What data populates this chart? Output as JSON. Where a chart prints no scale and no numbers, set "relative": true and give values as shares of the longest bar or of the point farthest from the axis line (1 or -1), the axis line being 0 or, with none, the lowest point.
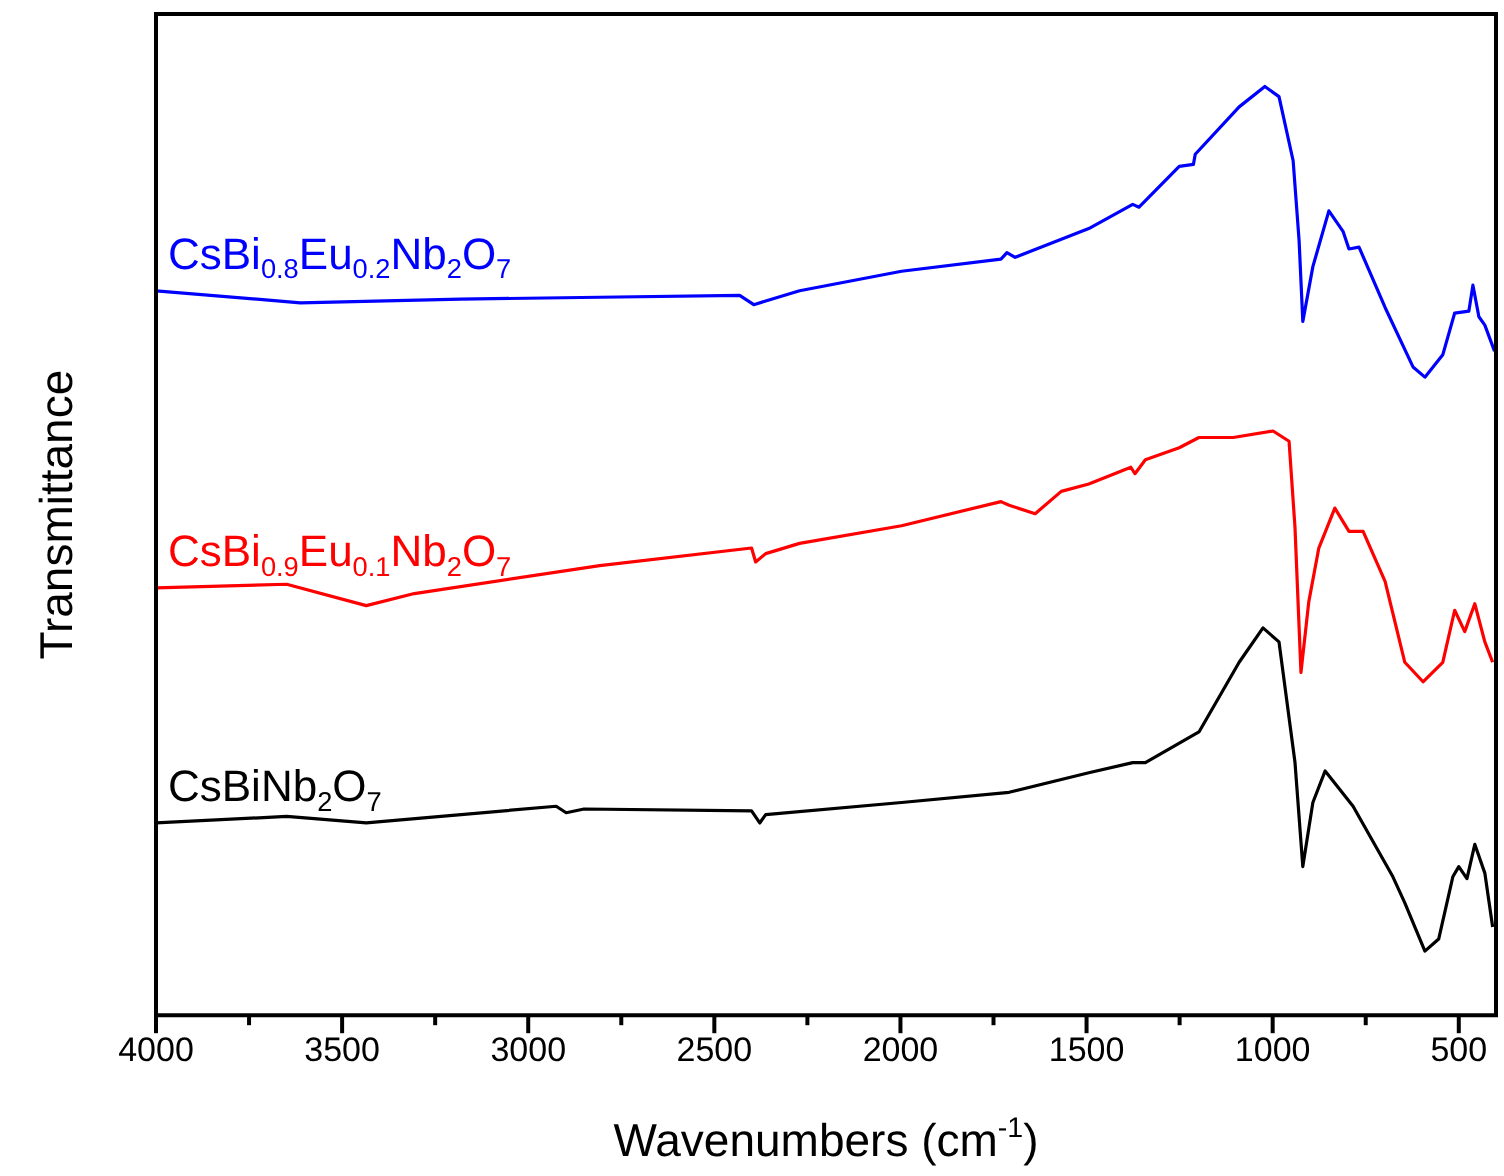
{
  "chart_data": {
    "type": "line",
    "relative": true,
    "xlabel": "Wavenumbers (cm$^{-1}$)",
    "ylabel": "Transmittance",
    "xlim": [
      4000,
      400
    ],
    "xticks": [
      4000,
      {
        "value": 3750,
        "label": null
      },
      3500,
      {
        "value": 3250,
        "label": null
      },
      3000,
      {
        "value": 2750,
        "label": null
      },
      2500,
      {
        "value": 2250,
        "label": null
      },
      2000,
      {
        "value": 1750,
        "label": null
      },
      1500,
      {
        "value": 1250,
        "label": null
      },
      1000,
      {
        "value": 750,
        "label": null
      },
      500
    ],
    "tick_labels": "x",
    "legend": false,
    "grid": false,
    "marker": "none",
    "line_style": "solid",
    "series": [
      {
        "name": "CsBi$_{0.8}$Eu$_{0.2}$Nb$_{2}$O$_{7}$",
        "color": "#0000ff",
        "x": [
          4000,
          3612,
          3182,
          2808,
          2432,
          2394,
          2362,
          2271,
          1997,
          1730,
          1714,
          1692,
          1494,
          1376,
          1359,
          1251,
          1213,
          1208,
          1090,
          1021,
          983,
          945,
          929,
          919,
          892,
          849,
          811,
          795,
          768,
          698,
          623,
          591,
          543,
          511,
          473,
          462,
          446,
          430,
          404
        ],
        "values": [
          0.78,
          0.767,
          0.771,
          0.773,
          0.775,
          0.765,
          0.769,
          0.78,
          0.801,
          0.814,
          0.821,
          0.816,
          0.847,
          0.873,
          0.87,
          0.914,
          0.916,
          0.927,
          0.978,
          1,
          0.989,
          0.92,
          0.834,
          0.747,
          0.806,
          0.866,
          0.844,
          0.825,
          0.827,
          0.762,
          0.698,
          0.687,
          0.711,
          0.756,
          0.758,
          0.786,
          0.752,
          0.743,
          0.715
        ]
      },
      {
        "name": "CsBi$_{0.9}$Eu$_{0.1}$Nb$_{2}$O$_{7}$",
        "color": "#ff0000",
        "x": [
          4000,
          3649,
          3435,
          3306,
          2808,
          2400,
          2389,
          2362,
          2271,
          1997,
          1730,
          1708,
          1638,
          1568,
          1494,
          1381,
          1370,
          1342,
          1251,
          1198,
          1106,
          999,
          956,
          940,
          924,
          903,
          876,
          833,
          795,
          757,
          698,
          645,
          596,
          543,
          511,
          484,
          457,
          430,
          409
        ],
        "values": [
          0.46,
          0.464,
          0.441,
          0.454,
          0.484,
          0.503,
          0.488,
          0.497,
          0.508,
          0.527,
          0.553,
          0.549,
          0.54,
          0.564,
          0.572,
          0.59,
          0.583,
          0.598,
          0.611,
          0.622,
          0.622,
          0.629,
          0.618,
          0.525,
          0.369,
          0.445,
          0.503,
          0.546,
          0.521,
          0.521,
          0.467,
          0.38,
          0.359,
          0.38,
          0.436,
          0.413,
          0.443,
          0.402,
          0.38
        ]
      },
      {
        "name": "CsBiNb$_{2}$O$_{7}$",
        "color": "#000000",
        "x": [
          4000,
          3649,
          3435,
          2925,
          2898,
          2850,
          2400,
          2378,
          2362,
          1997,
          1708,
          1494,
          1376,
          1342,
          1198,
          1090,
          1026,
          983,
          940,
          919,
          892,
          859,
          784,
          677,
          645,
          591,
          554,
          516,
          500,
          478,
          457,
          430,
          409
        ],
        "values": [
          0.207,
          0.214,
          0.207,
          0.225,
          0.218,
          0.222,
          0.22,
          0.207,
          0.216,
          0.229,
          0.24,
          0.261,
          0.272,
          0.272,
          0.305,
          0.38,
          0.417,
          0.402,
          0.272,
          0.16,
          0.229,
          0.263,
          0.225,
          0.149,
          0.121,
          0.069,
          0.082,
          0.149,
          0.16,
          0.147,
          0.184,
          0.153,
          0.095
        ]
      }
    ]
  }
}
